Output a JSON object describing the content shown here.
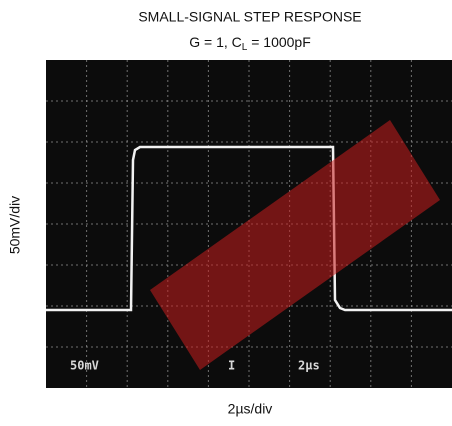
{
  "header": {
    "title": "SMALL-SIGNAL STEP RESPONSE",
    "subtitle": {
      "before": "G = 1, C",
      "subscript": "L",
      "after": " = 1000pF"
    }
  },
  "axes": {
    "y_label": "50mV/div",
    "x_label": "2µs/div"
  },
  "scope": {
    "left_label": "50mV",
    "center_label": "I",
    "right_label": "2µs"
  }
}
